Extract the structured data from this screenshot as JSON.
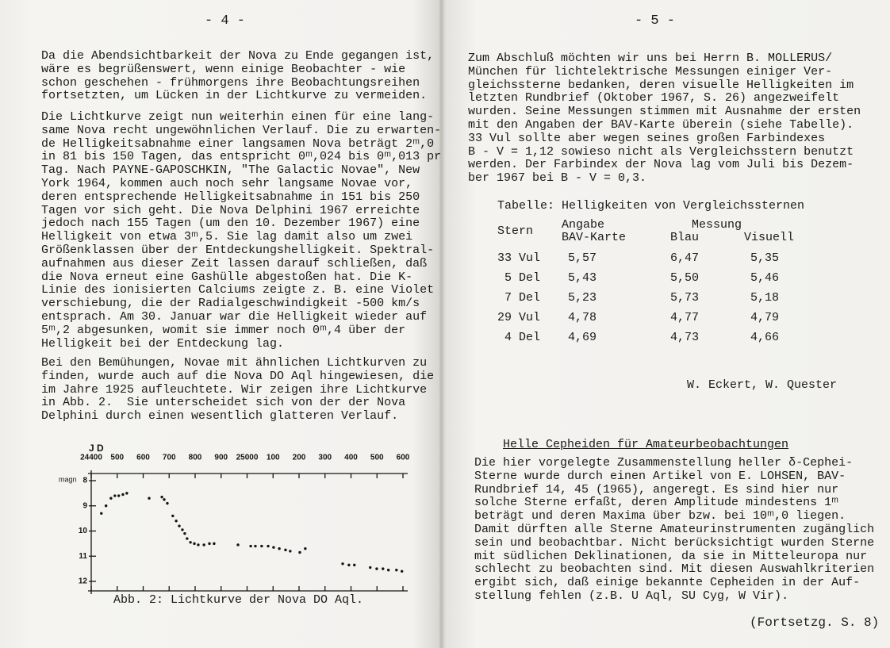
{
  "left_page": {
    "page_number": "- 4 -",
    "paragraphs": [
      [
        "Da die Abendsichtbarkeit der Nova zu Ende gegangen ist,",
        "wäre es begrüßenswert, wenn einige Beobachter - wie",
        "schon geschehen - frühmorgens ihre Beobachtungsreihen",
        "fortsetzten, um Lücken in der Lichtkurve zu vermeiden."
      ],
      [
        "Die Lichtkurve zeigt nun weiterhin einen für eine lang-",
        "same Nova recht ungewöhnlichen Verlauf. Die zu erwarten-",
        "de Helligkeitsabnahme einer langsamen Nova beträgt 2ᵐ,0",
        "in 81 bis 150 Tagen, das entspricht 0ᵐ,024 bis 0ᵐ,013 pr",
        "Tag. Nach PAYNE-GAPOSCHKIN, \"The Galactic Novae\", New",
        "York 1964, kommen auch noch sehr langsame Novae vor,",
        "deren entsprechende Helligkeitsabnahme in 151 bis 250",
        "Tagen vor sich geht. Die Nova Delphini 1967 erreichte",
        "jedoch nach 155 Tagen (um den 10. Dezember 1967) eine",
        "Helligkeit von etwa 3ᵐ,5. Sie lag damit also um zwei",
        "Größenklassen über der Entdeckungshelligkeit. Spektral-",
        "aufnahmen aus dieser Zeit lassen darauf schließen, daß",
        "die Nova erneut eine Gashülle abgestoßen hat. Die K-",
        "Linie des ionisierten Calciums zeigte z. B. eine Violet",
        "verschiebung, die der Radialgeschwindigkeit -500 km/s",
        "entsprach. Am 30. Januar war die Helligkeit wieder auf",
        "5ᵐ,2 abgesunken, womit sie immer noch 0ᵐ,4 über der",
        "Helligkeit bei der Entdeckung lag."
      ],
      [
        "Bei den Bemühungen, Novae mit ähnlichen Lichtkurven zu",
        "finden, wurde auch auf die Nova DO Aql hingewiesen, die",
        "im Jahre 1925 aufleuchtete. Wir zeigen ihre Lichtkurve",
        "in Abb. 2.  Sie unterscheidet sich von der der Nova",
        "Delphini durch einen wesentlich glatteren Verlauf."
      ]
    ],
    "caption": "Abb. 2: Lichtkurve der Nova DO Aql."
  },
  "chart_data": {
    "type": "scatter",
    "x_label": "J D",
    "y_label": "magn",
    "x": [
      24439,
      24457,
      24476,
      24491,
      24506,
      24522,
      24537,
      24623,
      24672,
      24681,
      24693,
      24714,
      24727,
      24739,
      24751,
      24760,
      24769,
      24782,
      24797,
      24812,
      24834,
      24855,
      24873,
      24965,
      25014,
      25032,
      25056,
      25081,
      25102,
      25124,
      25148,
      25166,
      25203,
      25224,
      25368,
      25392,
      25413,
      25474,
      25499,
      25523,
      25544,
      25575,
      25596
    ],
    "values": [
      9.3,
      9.0,
      8.7,
      8.6,
      8.6,
      8.55,
      8.5,
      8.7,
      8.65,
      8.75,
      8.9,
      9.4,
      9.6,
      9.8,
      9.95,
      10.1,
      10.3,
      10.45,
      10.5,
      10.55,
      10.55,
      10.5,
      10.5,
      10.55,
      10.6,
      10.6,
      10.6,
      10.6,
      10.65,
      10.7,
      10.75,
      10.8,
      10.85,
      10.7,
      11.3,
      11.35,
      11.35,
      11.45,
      11.5,
      11.5,
      11.55,
      11.55,
      11.6
    ],
    "color": "#151515",
    "xlim": [
      24400,
      25600
    ],
    "xticks": [
      24400,
      {
        "value": 24500,
        "label": "500"
      },
      {
        "value": 24600,
        "label": "600"
      },
      {
        "value": 24700,
        "label": "700"
      },
      {
        "value": 24800,
        "label": "800"
      },
      {
        "value": 24900,
        "label": "900"
      },
      25000,
      {
        "value": 25100,
        "label": "100"
      },
      {
        "value": 25200,
        "label": "200"
      },
      {
        "value": 25300,
        "label": "300"
      },
      {
        "value": 25400,
        "label": "400"
      },
      {
        "value": 25500,
        "label": "500"
      },
      {
        "value": 25600,
        "label": "600"
      }
    ],
    "ylim": [
      8,
      12
    ],
    "yticks": [
      8,
      9,
      10,
      11,
      12
    ],
    "y_inverted": true
  },
  "right_page": {
    "page_number": "- 5 -",
    "paragraph_1": [
      "Zum Abschluß möchten wir uns bei Herrn B. MOLLERUS/",
      "München für lichtelektrische Messungen einiger Ver-",
      "gleichssterne bedanken, deren visuelle Helligkeiten im",
      "letzten Rundbrief (Oktober 1967, S. 26) angezweifelt",
      "wurden. Seine Messungen stimmen mit Ausnahme der ersten",
      "mit den Angaben der BAV-Karte überein (siehe Tabelle).",
      "33 Vul sollte aber wegen seines großen Farbindexes",
      "B - V = 1,12 sowieso nicht als Vergleichsstern benutzt",
      "werden. Der Farbindex der Nova lag vom Juli bis Dezem-",
      "ber 1967 bei B - V = 0,3."
    ],
    "table": {
      "title": "Tabelle: Helligkeiten von Vergleichssternen",
      "header": {
        "stern": "Stern",
        "angabe": [
          "Angabe",
          "BAV-Karte"
        ],
        "messung": "Messung",
        "blau": "Blau",
        "visuell": "Visuell"
      },
      "rows": [
        [
          "33 Vul",
          "5,57",
          "6,47",
          "5,35"
        ],
        [
          "5 Del",
          "5,43",
          "5,50",
          "5,46"
        ],
        [
          "7 Del",
          "5,23",
          "5,73",
          "5,18"
        ],
        [
          "29 Vul",
          "4,78",
          "4,77",
          "4,79"
        ],
        [
          "4 Del",
          "4,69",
          "4,73",
          "4,66"
        ]
      ]
    },
    "signature": "W. Eckert, W. Quester",
    "heading": "Helle Cepheiden für Amateurbeobachtungen",
    "paragraph_2": [
      "Die hier vorgelegte Zusammenstellung heller δ-Cephei-",
      "Sterne wurde durch einen Artikel von E. LOHSEN, BAV-",
      "Rundbrief 14, 45 (1965), angeregt. Es sind hier nur",
      "solche Sterne erfaßt, deren Amplitude mindestens 1ᵐ",
      "beträgt und deren Maxima über bzw. bei 10ᵐ,0 liegen.",
      "Damit dürften alle Sterne Amateurinstrumenten zugänglich",
      "sein und beobachtbar. Nicht berücksichtigt wurden Sterne",
      "mit südlichen Deklinationen, da sie in Mitteleuropa nur",
      "schlecht zu beobachten sind. Mit diesen Auswahlkriterien",
      "ergibt sich, daß einige bekannte Cepheiden in der Auf-",
      "stellung fehlen (z.B. U Aql, SU Cyg, W Vir)."
    ],
    "footer": "(Fortsetzg. S. 8)"
  }
}
